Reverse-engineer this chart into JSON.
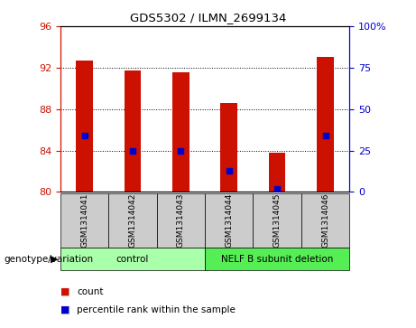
{
  "title": "GDS5302 / ILMN_2699134",
  "samples": [
    "GSM1314041",
    "GSM1314042",
    "GSM1314043",
    "GSM1314044",
    "GSM1314045",
    "GSM1314046"
  ],
  "count_values": [
    92.65,
    91.7,
    91.55,
    88.55,
    83.8,
    93.05
  ],
  "percentile_values": [
    34,
    25,
    25,
    13,
    2,
    34
  ],
  "ylim_left": [
    80,
    96
  ],
  "ylim_right": [
    0,
    100
  ],
  "yticks_left": [
    80,
    84,
    88,
    92,
    96
  ],
  "yticks_right": [
    0,
    25,
    50,
    75,
    100
  ],
  "bar_color": "#cc1100",
  "dot_color": "#0000cc",
  "groups": [
    {
      "label": "control",
      "indices": [
        0,
        1,
        2
      ],
      "color": "#aaffaa"
    },
    {
      "label": "NELF B subunit deletion",
      "indices": [
        3,
        4,
        5
      ],
      "color": "#55ee55"
    }
  ],
  "group_label_prefix": "genotype/variation",
  "legend_count_label": "count",
  "legend_percentile_label": "percentile rank within the sample",
  "plot_bg_color": "#ffffff",
  "outer_bg_color": "#ffffff",
  "left_axis_color": "#cc1100",
  "right_axis_color": "#0000cc",
  "sample_bg_color": "#cccccc",
  "bar_width": 0.35
}
